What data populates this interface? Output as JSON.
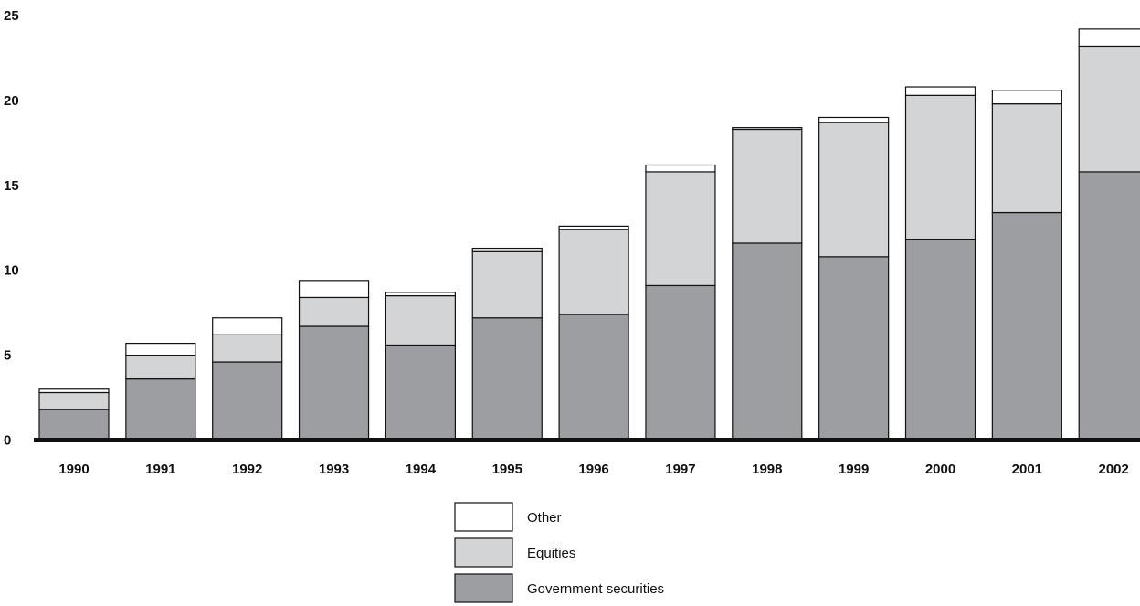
{
  "chart_data": {
    "type": "bar",
    "stacked": true,
    "categories": [
      "1990",
      "1991",
      "1992",
      "1993",
      "1994",
      "1995",
      "1996",
      "1997",
      "1998",
      "1999",
      "2000",
      "2001",
      "2002"
    ],
    "series": [
      {
        "name": "Government securities",
        "color": "#9d9ea2",
        "values": [
          1.8,
          3.6,
          4.6,
          6.7,
          5.6,
          7.2,
          7.4,
          9.1,
          11.6,
          10.8,
          11.8,
          13.4,
          15.8
        ]
      },
      {
        "name": "Equities",
        "color": "#d3d4d6",
        "values": [
          1.0,
          1.4,
          1.6,
          1.7,
          2.9,
          3.9,
          5.0,
          6.7,
          6.7,
          7.9,
          8.5,
          6.4,
          7.4
        ]
      },
      {
        "name": "Other",
        "color": "#ffffff",
        "values": [
          0.2,
          0.7,
          1.0,
          1.0,
          0.2,
          0.2,
          0.2,
          0.4,
          0.1,
          0.3,
          0.5,
          0.8,
          1.0
        ]
      }
    ],
    "yticks": [
      0,
      5,
      10,
      15,
      20,
      25
    ],
    "ylim": [
      0,
      25
    ],
    "grid": false,
    "legend_position": "bottom-center",
    "legend_order": [
      "Other",
      "Equities",
      "Government securities"
    ]
  }
}
